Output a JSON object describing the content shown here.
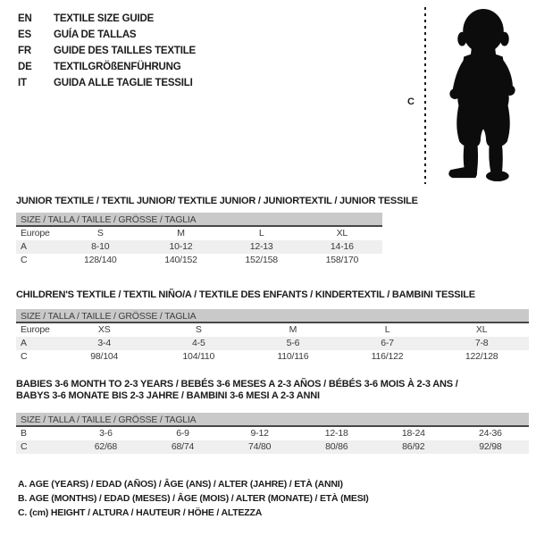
{
  "languages": [
    {
      "code": "EN",
      "title": "TEXTILE SIZE GUIDE"
    },
    {
      "code": "ES",
      "title": "GUÍA DE TALLAS"
    },
    {
      "code": "FR",
      "title": "GUIDE DES TAILLES TEXTILE"
    },
    {
      "code": "DE",
      "title": "TEXTILGRÖßENFÜHRUNG"
    },
    {
      "code": "IT",
      "title": "GUIDA ALLE TAGLIE TESSILI"
    }
  ],
  "figure": {
    "label": "C",
    "icon": "toddler-silhouette-icon"
  },
  "tables": [
    {
      "title_lines": [
        "JUNIOR TEXTILE / TEXTIL JUNIOR/ TEXTILE JUNIOR / JUNIORTEXTIL / JUNIOR TESSILE"
      ],
      "size_header": "SIZE / TALLA / TAILLE / GRÖSSE / TAGLIA",
      "rows": [
        [
          "Europe",
          "S",
          "M",
          "L",
          "XL"
        ],
        [
          "A",
          "8-10",
          "10-12",
          "12-13",
          "14-16"
        ],
        [
          "C",
          "128/140",
          "140/152",
          "152/158",
          "158/170"
        ]
      ]
    },
    {
      "title_lines": [
        "CHILDREN'S TEXTILE / TEXTIL NIÑO/A / TEXTILE DES ENFANTS / KINDERTEXTIL / BAMBINI TESSILE"
      ],
      "size_header": "SIZE / TALLA / TAILLE / GRÖSSE / TAGLIA",
      "rows": [
        [
          "Europe",
          "XS",
          "S",
          "M",
          "L",
          "XL"
        ],
        [
          "A",
          "3-4",
          "4-5",
          "5-6",
          "6-7",
          "7-8"
        ],
        [
          "C",
          "98/104",
          "104/110",
          "110/116",
          "116/122",
          "122/128"
        ]
      ]
    },
    {
      "title_lines": [
        "BABIES 3-6 MONTH TO 2-3 YEARS / BEBÉS 3-6 MESES A 2-3 AÑOS / BÉBÉS 3-6 MOIS À 2-3 ANS /",
        "BABYS 3-6 MONATE BIS 2-3 JAHRE / BAMBINI 3-6 MESI A 2-3 ANNI"
      ],
      "size_header": "SIZE / TALLA / TAILLE / GRÖSSE / TAGLIA",
      "rows": [
        [
          "B",
          "3-6",
          "6-9",
          "9-12",
          "12-18",
          "18-24",
          "24-36"
        ],
        [
          "C",
          "62/68",
          "68/74",
          "74/80",
          "80/86",
          "86/92",
          "92/98"
        ]
      ]
    }
  ],
  "notes": [
    "A. AGE (YEARS) / EDAD (AÑOS) / ÂGE (ANS) / ALTER (JAHRE) / ETÀ (ANNI)",
    "B. AGE (MONTHS) / EDAD (MESES) / ÂGE (MOIS) / ALTER (MONATE) / ETÀ (MESI)",
    "C. (cm) HEIGHT / ALTURA / HAUTEUR / HÖHE / ALTEZZA"
  ],
  "colors": {
    "size_bar": "#c9c9c9",
    "shaded_row": "#efefef",
    "table_text": "#3a3a3a",
    "heading_text": "#1c1c1c",
    "silhouette": "#0c0c0c"
  }
}
